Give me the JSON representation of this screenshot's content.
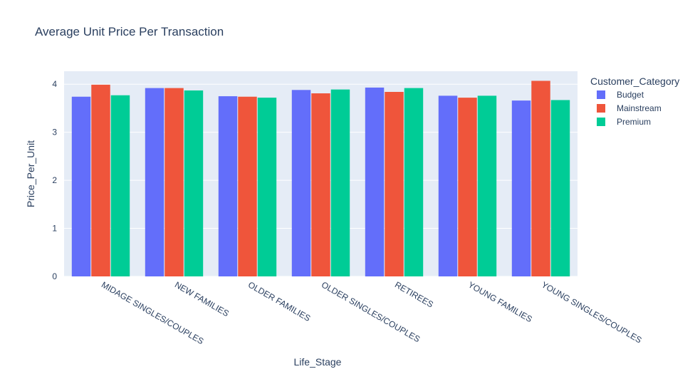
{
  "chart_data": {
    "type": "bar",
    "title": "Average Unit Price Per Transaction",
    "xlabel": "Life_Stage",
    "ylabel": "Price_Per_Unit",
    "categories": [
      "MIDAGE SINGLES/COUPLES",
      "NEW FAMILIES",
      "OLDER FAMILIES",
      "OLDER SINGLES/COUPLES",
      "RETIREES",
      "YOUNG FAMILIES",
      "YOUNG SINGLES/COUPLES"
    ],
    "series": [
      {
        "name": "Budget",
        "color": "#636efa",
        "values": [
          3.74,
          3.92,
          3.75,
          3.88,
          3.93,
          3.76,
          3.66
        ]
      },
      {
        "name": "Mainstream",
        "color": "#ef553b",
        "values": [
          3.99,
          3.92,
          3.74,
          3.81,
          3.84,
          3.72,
          4.07
        ]
      },
      {
        "name": "Premium",
        "color": "#00cc96",
        "values": [
          3.77,
          3.87,
          3.72,
          3.89,
          3.92,
          3.76,
          3.67
        ]
      }
    ],
    "ylim": [
      0,
      4.27
    ],
    "yticks": [
      0,
      1,
      2,
      3,
      4
    ],
    "grid": true,
    "legend_title": "Customer_Category",
    "legend_position": "top-right",
    "plot_background": "#e5ecf6"
  }
}
